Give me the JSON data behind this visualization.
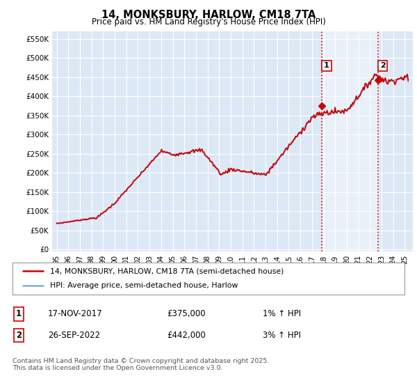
{
  "title": "14, MONKSBURY, HARLOW, CM18 7TA",
  "subtitle": "Price paid vs. HM Land Registry's House Price Index (HPI)",
  "yticks": [
    0,
    50000,
    100000,
    150000,
    200000,
    250000,
    300000,
    350000,
    400000,
    450000,
    500000,
    550000
  ],
  "ytick_labels": [
    "£0",
    "£50K",
    "£100K",
    "£150K",
    "£200K",
    "£250K",
    "£300K",
    "£350K",
    "£400K",
    "£450K",
    "£500K",
    "£550K"
  ],
  "ylim_bottom": -5000,
  "ylim_top": 570000,
  "xlim_start": 1994.6,
  "xlim_end": 2025.7,
  "background_color": "#ffffff",
  "plot_bg_color": "#dce8f5",
  "grid_color": "#ffffff",
  "hpi_color": "#7bafd4",
  "price_color": "#cc0000",
  "shade_color": "#dce8f5",
  "purchase1_x": 2017.88,
  "purchase1_y": 375000,
  "purchase2_x": 2022.73,
  "purchase2_y": 442000,
  "legend_price_label": "14, MONKSBURY, HARLOW, CM18 7TA (semi-detached house)",
  "legend_hpi_label": "HPI: Average price, semi-detached house, Harlow",
  "table_row1": [
    "1",
    "17-NOV-2017",
    "£375,000",
    "1% ↑ HPI"
  ],
  "table_row2": [
    "2",
    "26-SEP-2022",
    "£442,000",
    "3% ↑ HPI"
  ],
  "footer": "Contains HM Land Registry data © Crown copyright and database right 2025.\nThis data is licensed under the Open Government Licence v3.0.",
  "vline_color": "#cc0000",
  "ann_box_color": "#cc0000"
}
